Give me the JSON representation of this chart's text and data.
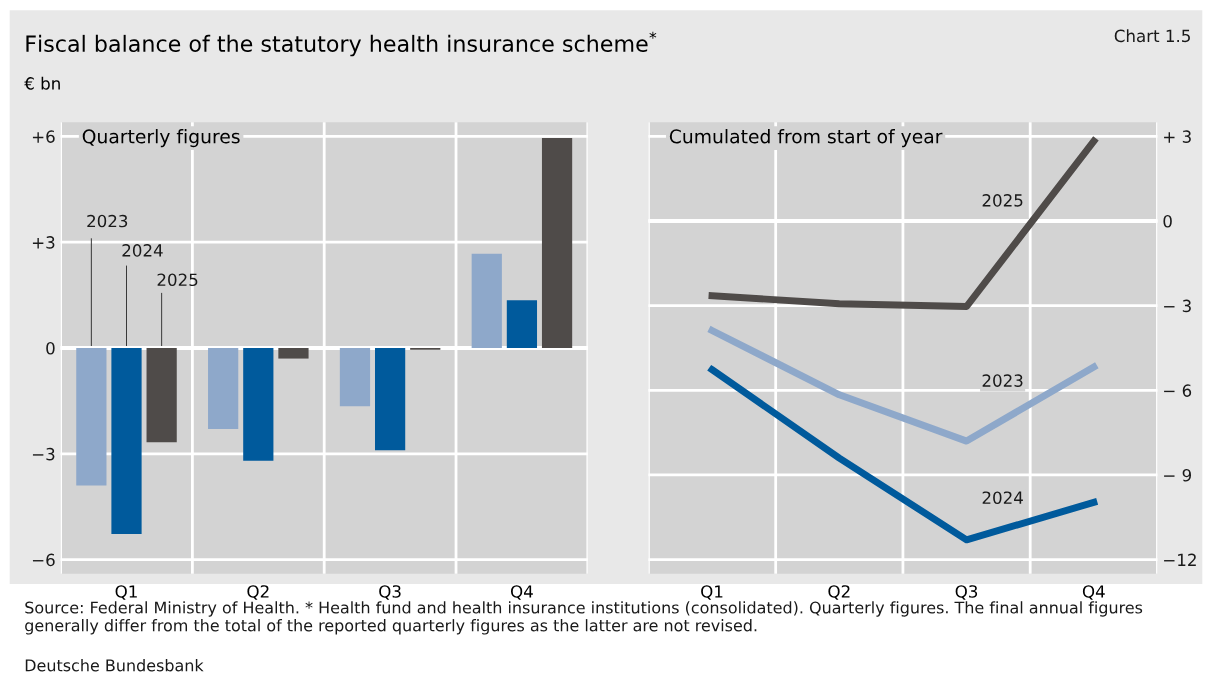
{
  "chart_data": [
    {
      "type": "bar",
      "title": "Fiscal balance of the statutory health insurance scheme$^{*}$",
      "subtitle": "Quarterly figures",
      "ylabel": "€ bn",
      "categories": [
        "Q1",
        "Q2",
        "Q3",
        "Q4"
      ],
      "series": [
        {
          "name": "2023",
          "color": "#8ea8ca",
          "values": [
            -3.9,
            -2.3,
            -1.65,
            2.67
          ]
        },
        {
          "name": "2024",
          "color": "#005a9c",
          "values": [
            -5.27,
            -3.2,
            -2.9,
            1.35
          ]
        },
        {
          "name": "2025",
          "color": "#4f4b49",
          "values": [
            -2.67,
            -0.3,
            -0.05,
            5.95
          ]
        }
      ],
      "ylim": [
        -6.4,
        6.4
      ],
      "yticks": [
        {
          "value": 6,
          "label": "+6"
        },
        {
          "value": 3,
          "label": "+3"
        },
        0,
        {
          "value": -3,
          "label": "−3"
        },
        {
          "value": -6,
          "label": "−6"
        }
      ],
      "grid": "y",
      "legend": false,
      "annotations": [
        "Chart 1.5",
        "Source: Federal Ministry of Health. * Health fund and health insurance institutions (consolidated). Quarterly figures. The final annual figures generally differ from the total of the reported quarterly figures as the latter are not revised.",
        "Deutsche Bundesbank"
      ]
    },
    {
      "type": "line",
      "subtitle": "Cumulated from start of year",
      "categories": [
        "Q1",
        "Q2",
        "Q3",
        "Q4"
      ],
      "series": [
        {
          "name": "2025",
          "color": "#4f4b49",
          "values": [
            -2.65,
            -2.93,
            -3.03,
            2.83
          ]
        },
        {
          "name": "2023",
          "color": "#8ea8ca",
          "values": [
            -3.88,
            -6.16,
            -7.8,
            -5.17
          ]
        },
        {
          "name": "2024",
          "color": "#005a9c",
          "values": [
            -5.27,
            -8.4,
            -11.3,
            -9.97
          ]
        }
      ],
      "ylim": [
        -12.5,
        3.5
      ],
      "yticks": [
        {
          "value": 3,
          "label": "+ 3"
        },
        0,
        {
          "value": -3,
          "label": "− 3"
        },
        {
          "value": -6,
          "label": "− 6"
        },
        {
          "value": -9,
          "label": "− 9"
        },
        {
          "value": -12,
          "label": "−12"
        }
      ],
      "grid": "y",
      "legend": false,
      "line_style": "solid",
      "marker": "none"
    }
  ]
}
